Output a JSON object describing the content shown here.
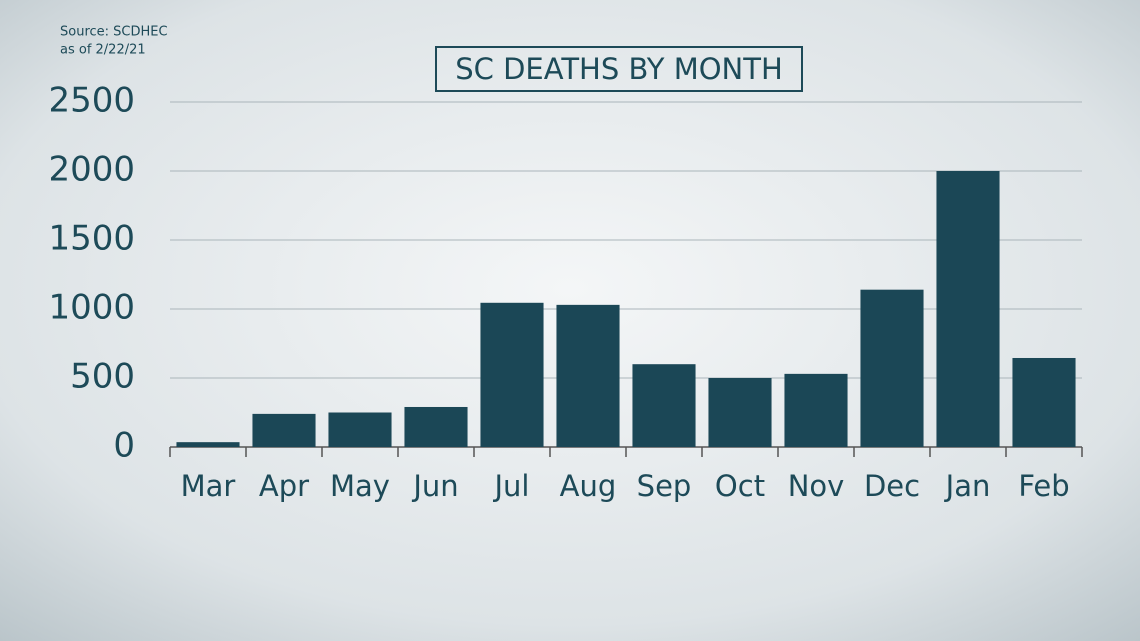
{
  "chart_data": {
    "type": "bar",
    "title": "SC DEATHS BY MONTH",
    "source": [
      "Source: SCDHEC",
      "as of 2/22/21"
    ],
    "categories": [
      "Mar",
      "Apr",
      "May",
      "Jun",
      "Jul",
      "Aug",
      "Sep",
      "Oct",
      "Nov",
      "Dec",
      "Jan",
      "Feb"
    ],
    "values": [
      35,
      240,
      250,
      290,
      1045,
      1030,
      600,
      500,
      530,
      1140,
      2000,
      645
    ],
    "color": "#1b4756",
    "ylim": [
      0,
      2500
    ],
    "yticks": [
      0,
      500,
      1000,
      1500,
      2000,
      2500
    ],
    "grid": true
  }
}
